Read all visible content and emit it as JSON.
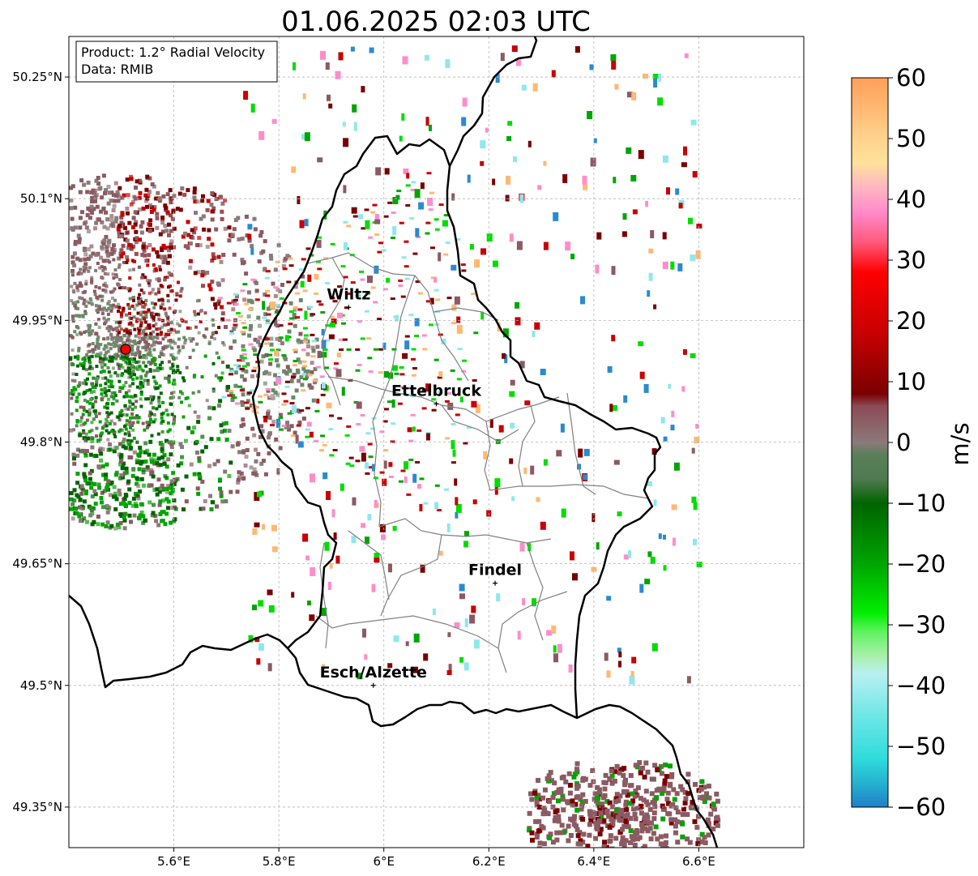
{
  "title": "01.06.2025 02:03 UTC",
  "info": {
    "product": "Product: 1.2° Radial Velocity",
    "data": "Data: RMIB"
  },
  "lon_ticks": [
    {
      "value": 5.6,
      "label": "5.6°E"
    },
    {
      "value": 5.8,
      "label": "5.8°E"
    },
    {
      "value": 6.0,
      "label": "6°E"
    },
    {
      "value": 6.2,
      "label": "6.2°E"
    },
    {
      "value": 6.4,
      "label": "6.4°E"
    },
    {
      "value": 6.6,
      "label": "6.6°E"
    }
  ],
  "lat_ticks": [
    {
      "value": 50.25,
      "label": "50.25°N"
    },
    {
      "value": 50.1,
      "label": "50.1°N"
    },
    {
      "value": 49.95,
      "label": "49.95°N"
    },
    {
      "value": 49.8,
      "label": "49.8°N"
    },
    {
      "value": 49.65,
      "label": "49.65°N"
    },
    {
      "value": 49.5,
      "label": "49.5°N"
    },
    {
      "value": 49.35,
      "label": "49.35°N"
    }
  ],
  "extent": {
    "lon_min": 5.4,
    "lon_max": 6.8,
    "lat_min": 49.3,
    "lat_max": 50.3
  },
  "radar": {
    "lon": 5.505,
    "lat": 49.914
  },
  "cities": [
    {
      "name": "Wiltz",
      "lon": 5.933,
      "lat": 49.966
    },
    {
      "name": "Ettelbruck",
      "lon": 6.1,
      "lat": 49.847
    },
    {
      "name": "Findel",
      "lon": 6.212,
      "lat": 49.626
    },
    {
      "name": "Esch/Alzette",
      "lon": 5.98,
      "lat": 49.5
    }
  ],
  "colorbar": {
    "label": "m/s",
    "min": -60,
    "max": 60,
    "ticks": [
      {
        "value": 60,
        "label": "60"
      },
      {
        "value": 50,
        "label": "50"
      },
      {
        "value": 40,
        "label": "40"
      },
      {
        "value": 30,
        "label": "30"
      },
      {
        "value": 20,
        "label": "20"
      },
      {
        "value": 10,
        "label": "10"
      },
      {
        "value": 0,
        "label": "0"
      },
      {
        "value": -10,
        "label": "−10"
      },
      {
        "value": -20,
        "label": "−20"
      },
      {
        "value": -30,
        "label": "−30"
      },
      {
        "value": -40,
        "label": "−40"
      },
      {
        "value": -50,
        "label": "−50"
      },
      {
        "value": -60,
        "label": "−60"
      }
    ],
    "stops": [
      {
        "v": 60,
        "color": "#ff9f5a"
      },
      {
        "v": 55,
        "color": "#ffb872"
      },
      {
        "v": 50,
        "color": "#ffd38e"
      },
      {
        "v": 46,
        "color": "#ffe19b"
      },
      {
        "v": 42,
        "color": "#ffb6c1"
      },
      {
        "v": 38,
        "color": "#ff8ccb"
      },
      {
        "v": 33,
        "color": "#ff5a7c"
      },
      {
        "v": 28,
        "color": "#ff0000"
      },
      {
        "v": 18,
        "color": "#c80000"
      },
      {
        "v": 8,
        "color": "#7a0000"
      },
      {
        "v": 6,
        "color": "#8b4a56"
      },
      {
        "v": 0,
        "color": "#8b7a7a"
      },
      {
        "v": -2,
        "color": "#5a7f5a"
      },
      {
        "v": -6,
        "color": "#4f7a50"
      },
      {
        "v": -10,
        "color": "#006400"
      },
      {
        "v": -20,
        "color": "#00a500"
      },
      {
        "v": -28,
        "color": "#00ee00"
      },
      {
        "v": -31,
        "color": "#5cf25c"
      },
      {
        "v": -35,
        "color": "#a8f0a8"
      },
      {
        "v": -38,
        "color": "#b9f0f2"
      },
      {
        "v": -45,
        "color": "#6ee6e6"
      },
      {
        "v": -52,
        "color": "#2fdcdc"
      },
      {
        "v": -56,
        "color": "#25b2d0"
      },
      {
        "v": -60,
        "color": "#1f7fc8"
      }
    ]
  },
  "colors": {
    "border_country": "#000000",
    "border_canton": "#808080",
    "grid": "#b0b0b0",
    "radar_marker": "#ff0000"
  }
}
